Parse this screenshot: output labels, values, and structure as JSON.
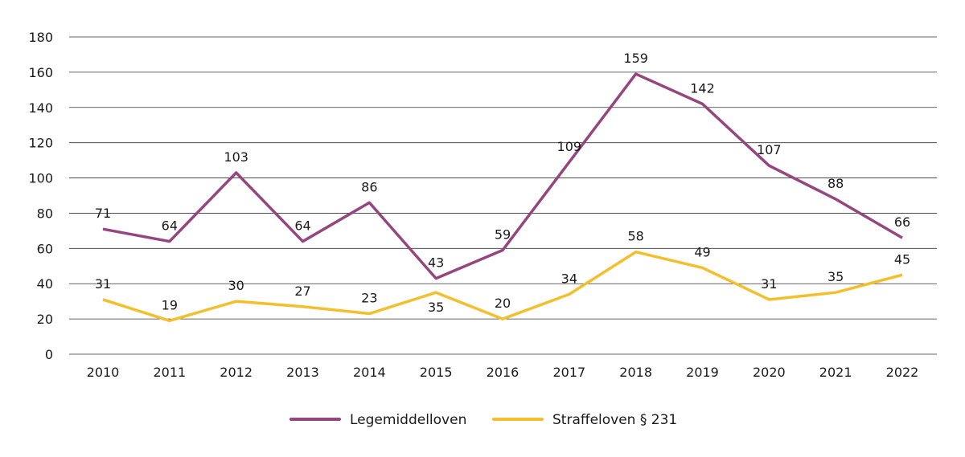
{
  "chart_data": {
    "type": "line",
    "title": "",
    "xlabel": "",
    "ylabel": "",
    "x": [
      "2010",
      "2011",
      "2012",
      "2013",
      "2014",
      "2015",
      "2016",
      "2017",
      "2018",
      "2019",
      "2020",
      "2021",
      "2022"
    ],
    "ylim": [
      0,
      180
    ],
    "yticks": [
      0,
      20,
      40,
      60,
      80,
      100,
      120,
      140,
      160,
      180
    ],
    "grid": true,
    "legend": "bottom",
    "series": [
      {
        "name": "Legemiddelloven",
        "color": "#96467e",
        "values": [
          71,
          64,
          103,
          64,
          86,
          43,
          59,
          109,
          159,
          142,
          107,
          88,
          66
        ]
      },
      {
        "name": "Straffeloven § 231",
        "color": "#f3bf2c",
        "values": [
          31,
          19,
          30,
          27,
          23,
          35,
          20,
          34,
          58,
          49,
          31,
          35,
          45
        ]
      }
    ]
  }
}
